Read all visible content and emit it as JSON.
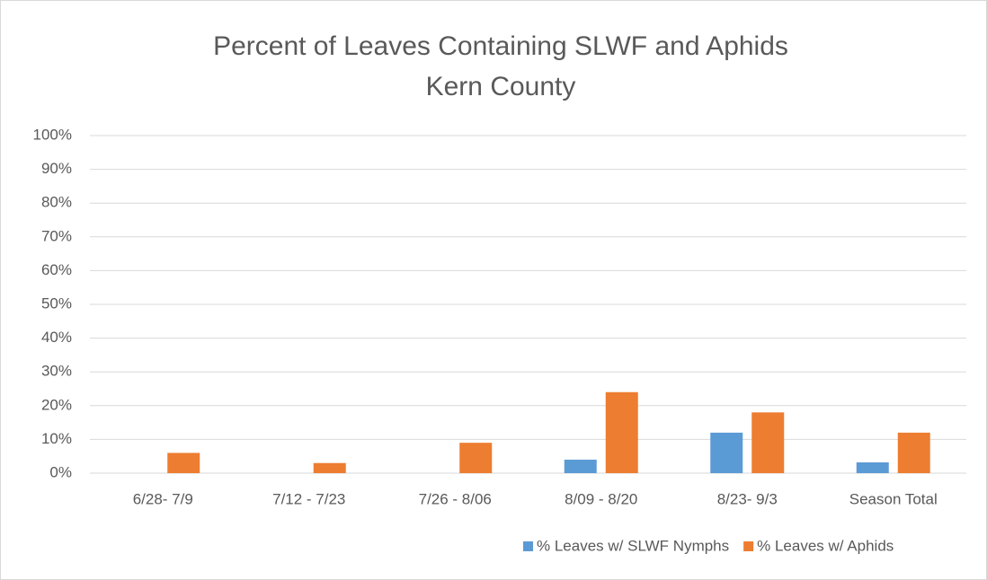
{
  "chart_data": {
    "type": "bar",
    "title": "Percent of Leaves Containing SLWF and Aphids",
    "subtitle": "Kern County",
    "categories": [
      "6/28- 7/9",
      "7/12 - 7/23",
      "7/26 - 8/06",
      "8/09 - 8/20",
      "8/23- 9/3",
      "Season Total"
    ],
    "series": [
      {
        "name": "% Leaves w/ SLWF Nymphs",
        "color": "#5b9bd5",
        "values": [
          0,
          0,
          0,
          4,
          12,
          3.2
        ]
      },
      {
        "name": "% Leaves w/ Aphids",
        "color": "#ed7d31",
        "values": [
          6,
          3,
          9,
          24,
          18,
          12
        ]
      }
    ],
    "ylim": [
      0,
      100
    ],
    "yticks": [
      {
        "value": 0,
        "label": "0%"
      },
      {
        "value": 10,
        "label": "10%"
      },
      {
        "value": 20,
        "label": "20%"
      },
      {
        "value": 30,
        "label": "30%"
      },
      {
        "value": 40,
        "label": "40%"
      },
      {
        "value": 50,
        "label": "50%"
      },
      {
        "value": 60,
        "label": "60%"
      },
      {
        "value": 70,
        "label": "70%"
      },
      {
        "value": 80,
        "label": "80%"
      },
      {
        "value": 90,
        "label": "90%"
      },
      {
        "value": 100,
        "label": "100%"
      }
    ],
    "grid": true,
    "legend": "bottom"
  }
}
